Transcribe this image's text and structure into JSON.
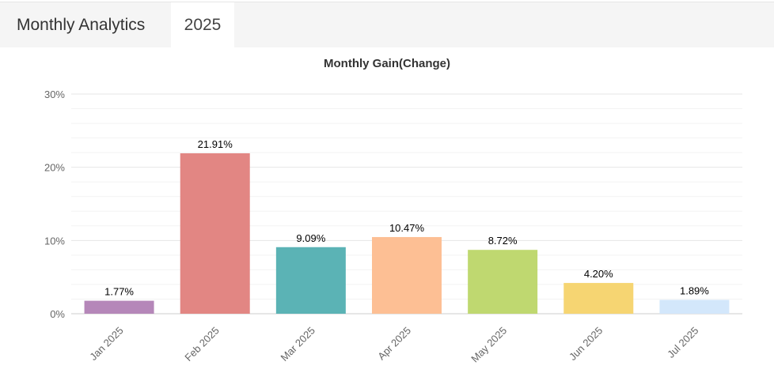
{
  "tabs": {
    "title": "Monthly Analytics",
    "year": "2025"
  },
  "chart_data": {
    "type": "bar",
    "title": "Monthly Gain(Change)",
    "categories": [
      "Jan 2025",
      "Feb 2025",
      "Mar 2025",
      "Apr 2025",
      "May 2025",
      "Jun 2025",
      "Jul 2025"
    ],
    "values": [
      1.77,
      21.91,
      9.09,
      10.47,
      8.72,
      4.2,
      1.89
    ],
    "data_labels": [
      "1.77%",
      "21.91%",
      "9.09%",
      "10.47%",
      "8.72%",
      "4.20%",
      "1.89%"
    ],
    "colors": [
      "#b587b9",
      "#e28683",
      "#5bb3b5",
      "#fdbf94",
      "#bfd870",
      "#f6d572",
      "#d3e7fb"
    ],
    "ylim": [
      0,
      30
    ],
    "yticks": [
      "0%",
      "10%",
      "20%",
      "30%"
    ],
    "ytick_values": [
      0,
      10,
      20,
      30
    ],
    "grid": true
  }
}
